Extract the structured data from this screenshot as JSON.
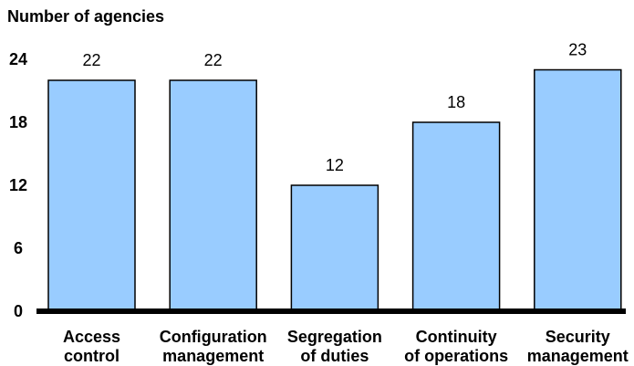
{
  "chart_data": {
    "type": "bar",
    "title": "",
    "ylabel": "Number of agencies",
    "xlabel": "",
    "categories": [
      [
        "Access",
        "control"
      ],
      [
        "Configuration",
        "management"
      ],
      [
        "Segregation",
        "of duties"
      ],
      [
        "Continuity",
        "of operations"
      ],
      [
        "Security",
        "management"
      ]
    ],
    "values": [
      22,
      22,
      12,
      18,
      23
    ],
    "value_labels": [
      "22",
      "22",
      "12",
      "18",
      "23"
    ],
    "ylim": [
      0,
      24
    ],
    "yticks": [
      0,
      6,
      12,
      18,
      24
    ],
    "ytick_labels": [
      "0",
      "6",
      "12",
      "18",
      "24"
    ],
    "grid": false,
    "legend": "none",
    "bar_color": "#99CCFF",
    "bar_edge_color": "#000000",
    "baseline_color": "#000000"
  }
}
